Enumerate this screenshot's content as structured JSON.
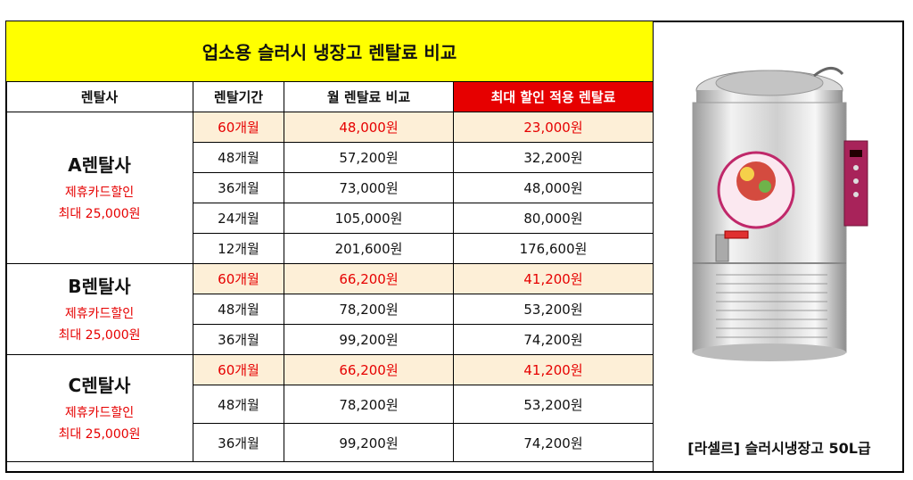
{
  "title": "업소용 슬러시 냉장고 렌탈료 비교",
  "headers": {
    "company": "렌탈사",
    "period": "렌탈기간",
    "monthly": "월 렌탈료 비교",
    "max_discount": "최대 할인 적용 렌탈료"
  },
  "companies": [
    {
      "name": "A렌탈사",
      "promo1": "제휴카드할인",
      "promo2": "최대 25,000원",
      "rows": [
        {
          "period": "60개월",
          "monthly": "48,000원",
          "discount": "23,000원",
          "highlight": true
        },
        {
          "period": "48개월",
          "monthly": "57,200원",
          "discount": "32,200원",
          "highlight": false
        },
        {
          "period": "36개월",
          "monthly": "73,000원",
          "discount": "48,000원",
          "highlight": false
        },
        {
          "period": "24개월",
          "monthly": "105,000원",
          "discount": "80,000원",
          "highlight": false
        },
        {
          "period": "12개월",
          "monthly": "201,600원",
          "discount": "176,600원",
          "highlight": false
        }
      ]
    },
    {
      "name": "B렌탈사",
      "promo1": "제휴카드할인",
      "promo2": "최대 25,000원",
      "rows": [
        {
          "period": "60개월",
          "monthly": "66,200원",
          "discount": "41,200원",
          "highlight": true
        },
        {
          "period": "48개월",
          "monthly": "78,200원",
          "discount": "53,200원",
          "highlight": false
        },
        {
          "period": "36개월",
          "monthly": "99,200원",
          "discount": "74,200원",
          "highlight": false
        }
      ]
    },
    {
      "name": "C렌탈사",
      "promo1": "제휴카드할인",
      "promo2": "최대 25,000원",
      "rows": [
        {
          "period": "60개월",
          "monthly": "66,200원",
          "discount": "41,200원",
          "highlight": true
        },
        {
          "period": "48개월",
          "monthly": "78,200원",
          "discount": "53,200원",
          "highlight": false
        },
        {
          "period": "36개월",
          "monthly": "99,200원",
          "discount": "74,200원",
          "highlight": false
        }
      ]
    }
  ],
  "product_caption": "[라셀르] 슬러시냉장고 50L급",
  "colors": {
    "title_bg": "#ffff00",
    "header_red": "#e60000",
    "highlight_row": "#fdefd7",
    "red_text": "#e60000"
  }
}
